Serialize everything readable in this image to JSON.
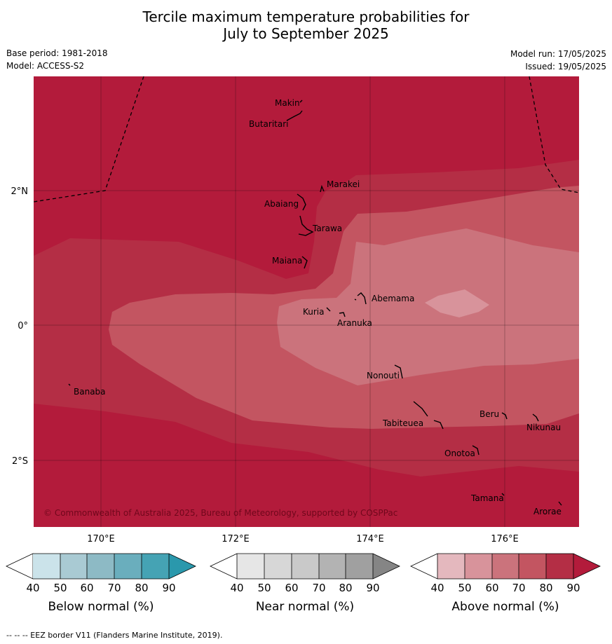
{
  "header": {
    "title_line1": "Tercile maximum temperature probabilities for",
    "title_line2": "July to September 2025",
    "base_period": "Base period: 1981-2018",
    "model": "Model: ACCESS-S2",
    "model_run": "Model run: 17/05/2025",
    "issued": "Issued: 19/05/2025"
  },
  "map": {
    "lat_labels": [
      "2°N",
      "0°",
      "2°S"
    ],
    "lon_labels": [
      "170°E",
      "172°E",
      "174°E",
      "176°E"
    ],
    "copyright": "© Commonwealth of Australia 2025, Bureau of Meteorology, supported by COSPPac",
    "islands": [
      {
        "name": "Makin"
      },
      {
        "name": "Butaritari"
      },
      {
        "name": "Marakei"
      },
      {
        "name": "Abaiang"
      },
      {
        "name": "Tarawa"
      },
      {
        "name": "Maiana"
      },
      {
        "name": "Abemama"
      },
      {
        "name": "Kuria"
      },
      {
        "name": "Aranuka"
      },
      {
        "name": "Banaba"
      },
      {
        "name": "Nonouti"
      },
      {
        "name": "Tabiteuea"
      },
      {
        "name": "Beru"
      },
      {
        "name": "Nikunau"
      },
      {
        "name": "Onotoa"
      },
      {
        "name": "Tamana"
      },
      {
        "name": "Arorae"
      }
    ]
  },
  "legends": [
    {
      "label": "Below normal (%)",
      "ticks": [
        "40",
        "50",
        "60",
        "70",
        "80",
        "90"
      ],
      "colors": [
        "#ffffff",
        "#cbe3ea",
        "#a9cad3",
        "#8dbac5",
        "#6aaebd",
        "#45a3b4",
        "#2a98ac"
      ]
    },
    {
      "label": "Near normal (%)",
      "ticks": [
        "40",
        "50",
        "60",
        "70",
        "80",
        "90"
      ],
      "colors": [
        "#ffffff",
        "#e6e6e6",
        "#d7d7d7",
        "#c9c9c9",
        "#b3b3b3",
        "#a0a0a0",
        "#858585"
      ]
    },
    {
      "label": "Above normal (%)",
      "ticks": [
        "40",
        "50",
        "60",
        "70",
        "80",
        "90"
      ],
      "colors": [
        "#ffffff",
        "#e4b8be",
        "#d8939b",
        "#cb737c",
        "#c35561",
        "#b42e45",
        "#b31b3b"
      ]
    }
  ],
  "footer": "--  --  -- EEZ border V11 (Flanders Marine Institute, 2019)."
}
